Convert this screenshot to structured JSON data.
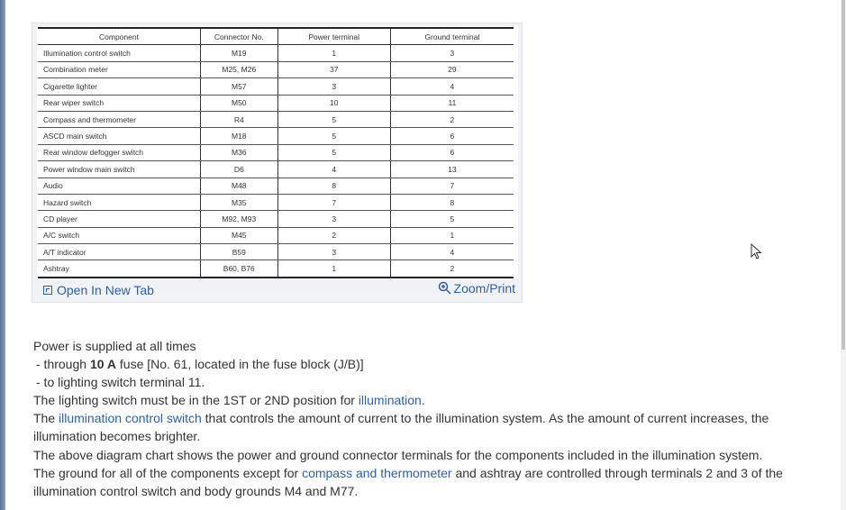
{
  "table": {
    "headers": [
      "Component",
      "Connector No.",
      "Power terminal",
      "Ground terminal"
    ],
    "rows": [
      [
        "Illumination control switch",
        "M19",
        "1",
        "3"
      ],
      [
        "Combination meter",
        "M25, M26",
        "37",
        "29"
      ],
      [
        "Cigarette lighter",
        "M57",
        "3",
        "4"
      ],
      [
        "Rear wiper switch",
        "M50",
        "10",
        "11"
      ],
      [
        "Compass and thermometer",
        "R4",
        "5",
        "2"
      ],
      [
        "ASCD main switch",
        "M18",
        "5",
        "6"
      ],
      [
        "Rear window defogger switch",
        "M36",
        "5",
        "6"
      ],
      [
        "Power window main switch",
        "D6",
        "4",
        "13"
      ],
      [
        "Audio",
        "M48",
        "8",
        "7"
      ],
      [
        "Hazard switch",
        "M35",
        "7",
        "8"
      ],
      [
        "CD player",
        "M92, M93",
        "3",
        "5"
      ],
      [
        "A/C switch",
        "M45",
        "2",
        "1"
      ],
      [
        "A/T indicator",
        "B59",
        "3",
        "4"
      ],
      [
        "Ashtray",
        "B60, B76",
        "1",
        "2"
      ]
    ]
  },
  "footer": {
    "open_label": "Open In New Tab",
    "zoom_label": "Zoom/Print"
  },
  "text": {
    "l1": "Power is supplied at all times",
    "l2a": " -  through ",
    "l2b": "10 A",
    "l2c": " fuse [No. 61, located in the fuse block (J/B)]",
    "l3": " -  to lighting switch terminal 11.",
    "l4a": "The lighting switch must be in the 1ST or 2ND position for ",
    "l4link": "illumination",
    "l4b": ".",
    "l5a": "The ",
    "l5link": "illumination control switch",
    "l5b": " that controls the amount of current to the illumination system. As the amount of current increases, the illumination becomes brighter.",
    "l6": "The above diagram chart shows the power and ground connector terminals for the components included in the illumination system.",
    "l7a": "The ground for all of the components except for ",
    "l7link": "compass and thermometer",
    "l7b": " and ashtray are controlled through terminals 2 and 3 of the illumination control switch and body grounds M4 and M77."
  },
  "colors": {
    "link": "#2f5f9e",
    "text": "#333333"
  }
}
